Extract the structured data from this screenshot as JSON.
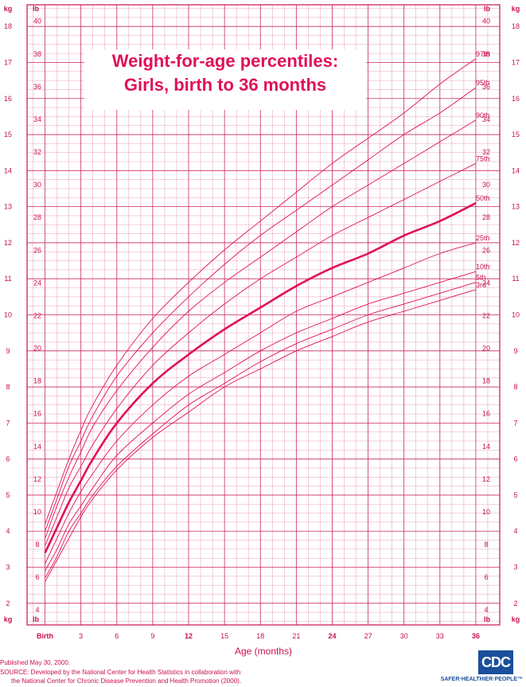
{
  "colors": {
    "grid": "#c8134a",
    "curve": "#e0105a",
    "text": "#c8134a",
    "logo_blue": "#1a4f9c"
  },
  "chart_data": {
    "type": "line",
    "title": "Weight-for-age percentiles:",
    "subtitle": "Girls, birth to 36 months",
    "xlabel": "Age (months)",
    "ylabel_left": "kg",
    "ylabel_right": "lb",
    "x_ticks": [
      {
        "v": 0,
        "label": "Birth",
        "bold": true
      },
      {
        "v": 3,
        "label": "3",
        "bold": false
      },
      {
        "v": 6,
        "label": "6",
        "bold": false
      },
      {
        "v": 9,
        "label": "9",
        "bold": false
      },
      {
        "v": 12,
        "label": "12",
        "bold": true
      },
      {
        "v": 15,
        "label": "15",
        "bold": false
      },
      {
        "v": 18,
        "label": "18",
        "bold": false
      },
      {
        "v": 21,
        "label": "21",
        "bold": false
      },
      {
        "v": 24,
        "label": "24",
        "bold": true
      },
      {
        "v": 27,
        "label": "27",
        "bold": false
      },
      {
        "v": 30,
        "label": "30",
        "bold": false
      },
      {
        "v": 33,
        "label": "33",
        "bold": false
      },
      {
        "v": 36,
        "label": "36",
        "bold": true
      }
    ],
    "xlim": [
      -1.5,
      38
    ],
    "ylim_kg": [
      1.4,
      18.6
    ],
    "kg_ticks": [
      "2",
      "3",
      "4",
      "5",
      "6",
      "7",
      "8",
      "9",
      "10",
      "11",
      "12",
      "13",
      "14",
      "15",
      "16",
      "17",
      "18"
    ],
    "lb_ticks": [
      "4",
      "6",
      "8",
      "10",
      "12",
      "14",
      "16",
      "18",
      "20",
      "22",
      "24",
      "26",
      "28",
      "30",
      "32",
      "34",
      "36",
      "38",
      "40"
    ],
    "grid": true,
    "x": [
      0,
      1,
      2,
      3,
      4,
      6,
      9,
      12,
      15,
      18,
      21,
      24,
      27,
      30,
      33,
      36
    ],
    "series": [
      {
        "name": "97th",
        "values": [
          4.2,
          5.1,
          6.0,
          6.8,
          7.5,
          8.6,
          9.9,
          10.9,
          11.8,
          12.6,
          13.4,
          14.2,
          14.9,
          15.6,
          16.4,
          17.1
        ]
      },
      {
        "name": "95th",
        "values": [
          4.0,
          4.9,
          5.8,
          6.5,
          7.2,
          8.3,
          9.5,
          10.5,
          11.4,
          12.2,
          12.9,
          13.6,
          14.3,
          15.0,
          15.6,
          16.3
        ]
      },
      {
        "name": "90th",
        "values": [
          3.8,
          4.7,
          5.5,
          6.2,
          6.9,
          7.9,
          9.1,
          10.1,
          10.9,
          11.6,
          12.3,
          13.0,
          13.6,
          14.2,
          14.8,
          15.4
        ]
      },
      {
        "name": "75th",
        "values": [
          3.6,
          4.4,
          5.2,
          5.8,
          6.4,
          7.4,
          8.6,
          9.5,
          10.3,
          11.0,
          11.6,
          12.2,
          12.7,
          13.2,
          13.7,
          14.2
        ]
      },
      {
        "name": "50th",
        "values": [
          3.4,
          4.1,
          4.8,
          5.4,
          6.0,
          7.0,
          8.1,
          8.9,
          9.6,
          10.2,
          10.8,
          11.3,
          11.7,
          12.2,
          12.6,
          13.1
        ]
      },
      {
        "name": "25th",
        "values": [
          3.1,
          3.8,
          4.5,
          5.1,
          5.6,
          6.5,
          7.5,
          8.3,
          8.9,
          9.5,
          10.1,
          10.5,
          10.9,
          11.3,
          11.7,
          12.0
        ]
      },
      {
        "name": "10th",
        "values": [
          2.9,
          3.5,
          4.2,
          4.7,
          5.2,
          6.1,
          7.0,
          7.8,
          8.4,
          9.0,
          9.5,
          9.9,
          10.3,
          10.6,
          10.9,
          11.2
        ]
      },
      {
        "name": "5th",
        "values": [
          2.7,
          3.3,
          4.0,
          4.5,
          5.0,
          5.8,
          6.7,
          7.5,
          8.1,
          8.7,
          9.2,
          9.6,
          10.0,
          10.3,
          10.6,
          10.9
        ]
      },
      {
        "name": "3rd",
        "values": [
          2.6,
          3.2,
          3.8,
          4.4,
          4.9,
          5.7,
          6.6,
          7.3,
          8.0,
          8.5,
          9.0,
          9.4,
          9.8,
          10.1,
          10.4,
          10.7
        ]
      }
    ]
  },
  "footer": {
    "published": "Published May 30, 2000.",
    "source_line1": "SOURCE: Developed by the National Center for Health Statistics in collaboration with",
    "source_line2": "the National Center for Chronic Disease Prevention and Health Promotion (2000)."
  },
  "logo": {
    "text": "CDC",
    "tagline": "SAFER·HEALTHIER·PEOPLE™"
  }
}
